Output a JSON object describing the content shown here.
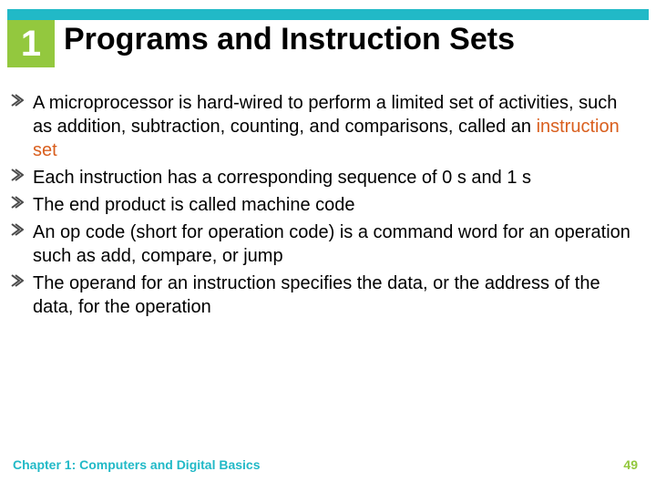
{
  "colors": {
    "accent_cyan": "#21b9c7",
    "accent_green": "#93c83e",
    "highlight_orange": "#d95f1e",
    "arrow_fill": "#4a4a4a",
    "background": "#ffffff",
    "text": "#000000"
  },
  "chapter": {
    "number": "1"
  },
  "title": "Programs and Instruction Sets",
  "bullets": [
    {
      "segments": [
        {
          "text": "A microprocessor is hard-wired to perform a limited set of activities, such as addition, subtraction, counting, and comparisons, called an ",
          "highlight": false
        },
        {
          "text": "instruction set",
          "highlight": true
        }
      ]
    },
    {
      "segments": [
        {
          "text": "Each instruction has a corresponding sequence of 0 s and 1 s",
          "highlight": false
        }
      ]
    },
    {
      "segments": [
        {
          "text": "The end product is called machine code",
          "highlight": false
        }
      ]
    },
    {
      "segments": [
        {
          "text": "An op code (short for operation code) is a command word for an operation such as add, compare, or jump",
          "highlight": false
        }
      ]
    },
    {
      "segments": [
        {
          "text": "The operand for an instruction specifies the data, or the address of the data, for the operation",
          "highlight": false
        }
      ]
    }
  ],
  "footer": {
    "chapter_title": "Chapter 1: Computers and Digital Basics",
    "page": "49"
  }
}
